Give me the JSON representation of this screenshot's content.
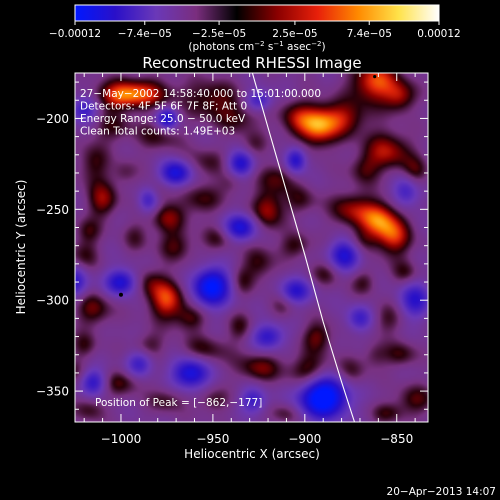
{
  "chart_data": {
    "type": "heatmap",
    "title": "Reconstructed RHESSI Image",
    "xlabel": "Heliocentric X (arcsec)",
    "ylabel": "Heliocentric Y (arcsec)",
    "xlim": [
      -1025,
      -833
    ],
    "ylim": [
      -367,
      -175
    ],
    "x_ticks": [
      -1000,
      -950,
      -900,
      -850
    ],
    "y_ticks": [
      -200,
      -250,
      -300,
      -350
    ],
    "x_tick_labels": [
      "−1000",
      "−950",
      "−900",
      "−850"
    ],
    "y_tick_labels": [
      "−200",
      "−250",
      "−300",
      "−350"
    ],
    "colorbar": {
      "range": [
        -0.00012,
        0.00012
      ],
      "tick_values": [
        -0.00012,
        -7.4e-05,
        -2.5e-05,
        2.5e-05,
        7.4e-05,
        0.00012
      ],
      "tick_labels": [
        "−0.00012",
        "−7.4e−05",
        "−2.5e−05",
        "2.5e−05",
        "7.4e−05",
        "0.00012"
      ],
      "colors": [
        "#0018ff",
        "#2a10c8",
        "#6a38b8",
        "#7a2e7e",
        "#000000",
        "#8a0000",
        "#e8200a",
        "#ff8a00",
        "#ffe24a",
        "#ffffff"
      ],
      "unit_parts": [
        "(photons cm",
        "−2",
        " s",
        "−1",
        " asec",
        "−2",
        ")"
      ]
    },
    "annotations": [
      "27−May−2002 14:58:40.000 to 15:01:00.000",
      "Detectors: 4F 5F 6F 7F 8F; Att 0",
      "Energy Range: 25.0 − 50.0 keV",
      "Clean      Total counts: 1.49E+03"
    ],
    "peak_label": "Position of Peak = [−862,−177]",
    "peak_position": [
      -862,
      -177
    ],
    "limb_curve": [
      [
        -928.5,
        -175
      ],
      [
        -920,
        -205
      ],
      [
        -910,
        -240
      ],
      [
        -900,
        -275
      ],
      [
        -890,
        -312
      ],
      [
        -880,
        -345
      ],
      [
        -873,
        -367
      ]
    ],
    "emission_sources": [
      {
        "x": -990,
        "y": -186,
        "sx": 14,
        "sy": 6,
        "v": 0.9
      },
      {
        "x": -1000,
        "y": -188,
        "sx": 10,
        "sy": 5,
        "v": 0.7
      },
      {
        "x": -950,
        "y": -190,
        "sx": 10,
        "sy": 8,
        "v": 0.7
      },
      {
        "x": -935,
        "y": -200,
        "sx": 8,
        "sy": 6,
        "v": 0.5
      },
      {
        "x": -905,
        "y": -200,
        "sx": 7,
        "sy": 7,
        "v": 0.7
      },
      {
        "x": -893,
        "y": -205,
        "sx": 7,
        "sy": 8,
        "v": 1.1
      },
      {
        "x": -880,
        "y": -200,
        "sx": 10,
        "sy": 7,
        "v": 0.9
      },
      {
        "x": -862,
        "y": -180,
        "sx": 9,
        "sy": 8,
        "v": 1.2
      },
      {
        "x": -848,
        "y": -188,
        "sx": 6,
        "sy": 6,
        "v": 0.8
      },
      {
        "x": -855,
        "y": -218,
        "sx": 9,
        "sy": 8,
        "v": 0.9
      },
      {
        "x": -840,
        "y": -230,
        "sx": 5,
        "sy": 6,
        "v": 0.6
      },
      {
        "x": -868,
        "y": -228,
        "sx": 6,
        "sy": 6,
        "v": 0.5
      },
      {
        "x": -1005,
        "y": -205,
        "sx": 8,
        "sy": 6,
        "v": 0.5
      },
      {
        "x": -980,
        "y": -210,
        "sx": 9,
        "sy": 6,
        "v": 0.5
      },
      {
        "x": -1015,
        "y": -225,
        "sx": 6,
        "sy": 8,
        "v": 0.6
      },
      {
        "x": -1010,
        "y": -245,
        "sx": 6,
        "sy": 7,
        "v": 0.8
      },
      {
        "x": -1018,
        "y": -262,
        "sx": 5,
        "sy": 5,
        "v": 0.5
      },
      {
        "x": -955,
        "y": -225,
        "sx": 9,
        "sy": 6,
        "v": 0.5
      },
      {
        "x": -957,
        "y": -245,
        "sx": 8,
        "sy": 6,
        "v": 0.6
      },
      {
        "x": -915,
        "y": -232,
        "sx": 7,
        "sy": 6,
        "v": 0.6
      },
      {
        "x": -920,
        "y": -250,
        "sx": 6,
        "sy": 8,
        "v": 0.9
      },
      {
        "x": -902,
        "y": -245,
        "sx": 6,
        "sy": 6,
        "v": 0.5
      },
      {
        "x": -875,
        "y": -250,
        "sx": 8,
        "sy": 7,
        "v": 0.8
      },
      {
        "x": -860,
        "y": -255,
        "sx": 7,
        "sy": 7,
        "v": 1.1
      },
      {
        "x": -852,
        "y": -265,
        "sx": 7,
        "sy": 8,
        "v": 1.0
      },
      {
        "x": -870,
        "y": -268,
        "sx": 6,
        "sy": 5,
        "v": 0.5
      },
      {
        "x": -975,
        "y": -255,
        "sx": 7,
        "sy": 6,
        "v": 0.7
      },
      {
        "x": -970,
        "y": -270,
        "sx": 7,
        "sy": 6,
        "v": 0.6
      },
      {
        "x": -947,
        "y": -266,
        "sx": 6,
        "sy": 5,
        "v": 0.5
      },
      {
        "x": -925,
        "y": -280,
        "sx": 6,
        "sy": 7,
        "v": 0.6
      },
      {
        "x": -905,
        "y": -270,
        "sx": 6,
        "sy": 5,
        "v": 0.6
      },
      {
        "x": -888,
        "y": -285,
        "sx": 6,
        "sy": 5,
        "v": 0.5
      },
      {
        "x": -1020,
        "y": -275,
        "sx": 6,
        "sy": 6,
        "v": 0.5
      },
      {
        "x": -985,
        "y": -290,
        "sx": 6,
        "sy": 6,
        "v": 0.5
      },
      {
        "x": -975,
        "y": -300,
        "sx": 7,
        "sy": 8,
        "v": 1.1
      },
      {
        "x": -962,
        "y": -310,
        "sx": 6,
        "sy": 5,
        "v": 0.6
      },
      {
        "x": -1015,
        "y": -305,
        "sx": 7,
        "sy": 7,
        "v": 0.7
      },
      {
        "x": -1020,
        "y": -325,
        "sx": 5,
        "sy": 5,
        "v": 0.5
      },
      {
        "x": -985,
        "y": -325,
        "sx": 6,
        "sy": 5,
        "v": 0.5
      },
      {
        "x": -955,
        "y": -328,
        "sx": 9,
        "sy": 6,
        "v": 0.6
      },
      {
        "x": -935,
        "y": -315,
        "sx": 5,
        "sy": 6,
        "v": 0.5
      },
      {
        "x": -935,
        "y": -290,
        "sx": 5,
        "sy": 6,
        "v": 0.5
      },
      {
        "x": -925,
        "y": -337,
        "sx": 9,
        "sy": 6,
        "v": 0.7
      },
      {
        "x": -893,
        "y": -320,
        "sx": 6,
        "sy": 6,
        "v": 0.7
      },
      {
        "x": -897,
        "y": -340,
        "sx": 8,
        "sy": 7,
        "v": 0.9
      },
      {
        "x": -875,
        "y": -340,
        "sx": 6,
        "sy": 6,
        "v": 0.5
      },
      {
        "x": -855,
        "y": -310,
        "sx": 7,
        "sy": 6,
        "v": 0.5
      },
      {
        "x": -848,
        "y": -330,
        "sx": 6,
        "sy": 5,
        "v": 0.6
      },
      {
        "x": -1000,
        "y": -345,
        "sx": 8,
        "sy": 5,
        "v": 0.6
      },
      {
        "x": -1017,
        "y": -360,
        "sx": 6,
        "sy": 5,
        "v": 0.5
      },
      {
        "x": -975,
        "y": -355,
        "sx": 7,
        "sy": 5,
        "v": 0.5
      },
      {
        "x": -950,
        "y": -355,
        "sx": 6,
        "sy": 5,
        "v": 0.5
      },
      {
        "x": -910,
        "y": -362,
        "sx": 6,
        "sy": 4,
        "v": 0.5
      },
      {
        "x": -840,
        "y": -355,
        "sx": 8,
        "sy": 6,
        "v": 0.6
      },
      {
        "x": -855,
        "y": -362,
        "sx": 6,
        "sy": 4,
        "v": 0.5
      },
      {
        "x": -862,
        "y": -330,
        "sx": 5,
        "sy": 5,
        "v": 0.4
      },
      {
        "x": -998,
        "y": -230,
        "sx": 5,
        "sy": 5,
        "v": 0.4
      },
      {
        "x": -940,
        "y": -235,
        "sx": 5,
        "sy": 5,
        "v": 0.4
      },
      {
        "x": -947,
        "y": -295,
        "sx": 5,
        "sy": 5,
        "v": 0.4
      },
      {
        "x": -992,
        "y": -265,
        "sx": 5,
        "sy": 6,
        "v": 0.4
      },
      {
        "x": -1025,
        "y": -340,
        "sx": 5,
        "sy": 5,
        "v": 0.4
      },
      {
        "x": -912,
        "y": -303,
        "sx": 5,
        "sy": 5,
        "v": 0.4
      },
      {
        "x": -868,
        "y": -290,
        "sx": 5,
        "sy": 5,
        "v": 0.5
      },
      {
        "x": -845,
        "y": -285,
        "sx": 5,
        "sy": 5,
        "v": 0.5
      },
      {
        "x": -980,
        "y": -240,
        "sx": 5,
        "sy": 5,
        "v": 0.4
      },
      {
        "x": -928,
        "y": -215,
        "sx": 5,
        "sy": 5,
        "v": 0.4
      },
      {
        "x": -975,
        "y": -200,
        "sx": 4,
        "sy": 4,
        "v": -1.6
      },
      {
        "x": -970,
        "y": -230,
        "sx": 6,
        "sy": 5,
        "v": -1.8
      },
      {
        "x": -1000,
        "y": -290,
        "sx": 6,
        "sy": 5,
        "v": -1.6
      },
      {
        "x": -950,
        "y": -293,
        "sx": 7,
        "sy": 7,
        "v": -2.6
      },
      {
        "x": -935,
        "y": -260,
        "sx": 6,
        "sy": 5,
        "v": -1.6
      },
      {
        "x": -935,
        "y": -225,
        "sx": 5,
        "sy": 5,
        "v": -1.5
      },
      {
        "x": -962,
        "y": -340,
        "sx": 7,
        "sy": 6,
        "v": -1.8
      },
      {
        "x": -920,
        "y": -320,
        "sx": 6,
        "sy": 5,
        "v": -1.3
      },
      {
        "x": -890,
        "y": -353,
        "sx": 9,
        "sy": 8,
        "v": -2.8
      },
      {
        "x": -878,
        "y": -275,
        "sx": 6,
        "sy": 6,
        "v": -1.6
      },
      {
        "x": -905,
        "y": -295,
        "sx": 6,
        "sy": 5,
        "v": -1.3
      },
      {
        "x": -905,
        "y": -223,
        "sx": 4,
        "sy": 5,
        "v": -1.5
      },
      {
        "x": -985,
        "y": -245,
        "sx": 4,
        "sy": 5,
        "v": -1.1
      },
      {
        "x": -840,
        "y": -300,
        "sx": 6,
        "sy": 7,
        "v": -1.3
      },
      {
        "x": -845,
        "y": -240,
        "sx": 5,
        "sy": 6,
        "v": -1.1
      },
      {
        "x": -1025,
        "y": -290,
        "sx": 5,
        "sy": 6,
        "v": -1.2
      },
      {
        "x": -1015,
        "y": -345,
        "sx": 5,
        "sy": 5,
        "v": -1.3
      },
      {
        "x": -990,
        "y": -335,
        "sx": 5,
        "sy": 5,
        "v": -1.1
      },
      {
        "x": -928,
        "y": -355,
        "sx": 5,
        "sy": 5,
        "v": -1.1
      },
      {
        "x": -870,
        "y": -310,
        "sx": 5,
        "sy": 5,
        "v": -1.1
      },
      {
        "x": -925,
        "y": -190,
        "sx": 5,
        "sy": 4,
        "v": -1.1
      },
      {
        "x": -1020,
        "y": -195,
        "sx": 5,
        "sy": 5,
        "v": -1.2
      }
    ]
  },
  "footer": {
    "timestamp": "20−Apr−2013 14:07"
  }
}
